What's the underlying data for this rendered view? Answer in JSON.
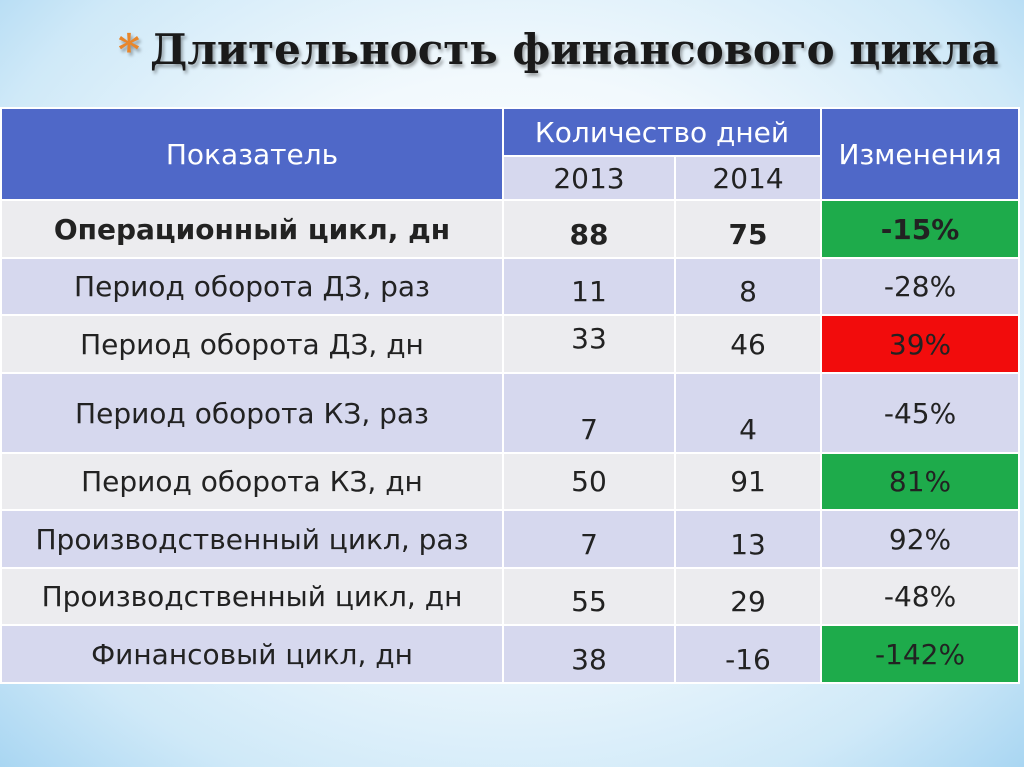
{
  "title": {
    "bullet": "*",
    "text": "Длительность финансового цикла"
  },
  "table": {
    "header": {
      "indicator": "Показатель",
      "days": "Количество дней",
      "year1": "2013",
      "year2": "2014",
      "change": "Изменения"
    },
    "rows": [
      {
        "label": "Операционный цикл, дн",
        "v2013": "88",
        "v2014": "75",
        "change": "-15%",
        "highlight": "green",
        "bold": true
      },
      {
        "label": "Период оборота ДЗ, раз",
        "v2013": "11",
        "v2014": "8",
        "change": "-28%",
        "highlight": "none",
        "bold": false
      },
      {
        "label": "Период оборота ДЗ, дн",
        "v2013": "33",
        "v2014": "46",
        "change": "39%",
        "highlight": "red",
        "bold": false
      },
      {
        "label": "Период оборота КЗ, раз",
        "v2013": "7",
        "v2014": "4",
        "change": "-45%",
        "highlight": "none",
        "bold": false
      },
      {
        "label": "Период оборота КЗ, дн",
        "v2013": "50",
        "v2014": "91",
        "change": "81%",
        "highlight": "green",
        "bold": false
      },
      {
        "label": "Производственный цикл, раз",
        "v2013": "7",
        "v2014": "13",
        "change": "92%",
        "highlight": "none",
        "bold": false
      },
      {
        "label": "Производственный цикл, дн",
        "v2013": "55",
        "v2014": "29",
        "change": "-48%",
        "highlight": "none",
        "bold": false
      },
      {
        "label": "Финансовый цикл, дн",
        "v2013": "38",
        "v2014": "-16",
        "change": "-142%",
        "highlight": "green",
        "bold": false
      }
    ]
  },
  "colors": {
    "header": "#4f68c8",
    "row_light": "#ececef",
    "row_dark": "#d6d8ee",
    "green": "#1eab4b",
    "red": "#f20c0c",
    "bullet": "#e8862a"
  }
}
